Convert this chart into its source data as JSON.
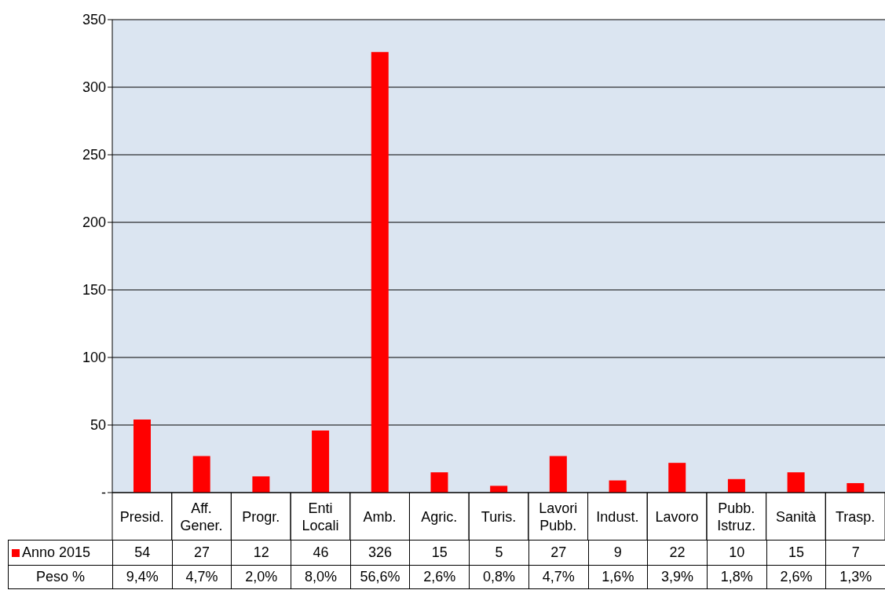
{
  "chart_data": {
    "type": "bar",
    "categories": [
      "Presid.",
      "Aff. Gener.",
      "Progr.",
      "Enti Locali",
      "Amb.",
      "Agric.",
      "Turis.",
      "Lavori Pubb.",
      "Indust.",
      "Lavoro",
      "Pubb. Istruz.",
      "Sanità",
      "Trasp."
    ],
    "series": [
      {
        "name": "Anno 2015",
        "color": "#ff0000",
        "values": [
          54,
          27,
          12,
          46,
          326,
          15,
          5,
          27,
          9,
          22,
          10,
          15,
          7
        ]
      }
    ],
    "ylim": [
      0,
      350
    ],
    "yticks": [
      {
        "value": 0,
        "label": "-"
      },
      50,
      100,
      150,
      200,
      250,
      300,
      350
    ],
    "grid": "y",
    "legend": "bottom",
    "data_labels": true,
    "annotations": [
      "Peso %",
      "9,4%",
      "4,7%",
      "2,0%",
      "8,0%",
      "56,6%",
      "2,6%",
      "0,8%",
      "4,7%",
      "1,6%",
      "3,9%",
      "1,8%",
      "2,6%",
      "1,3%"
    ]
  }
}
